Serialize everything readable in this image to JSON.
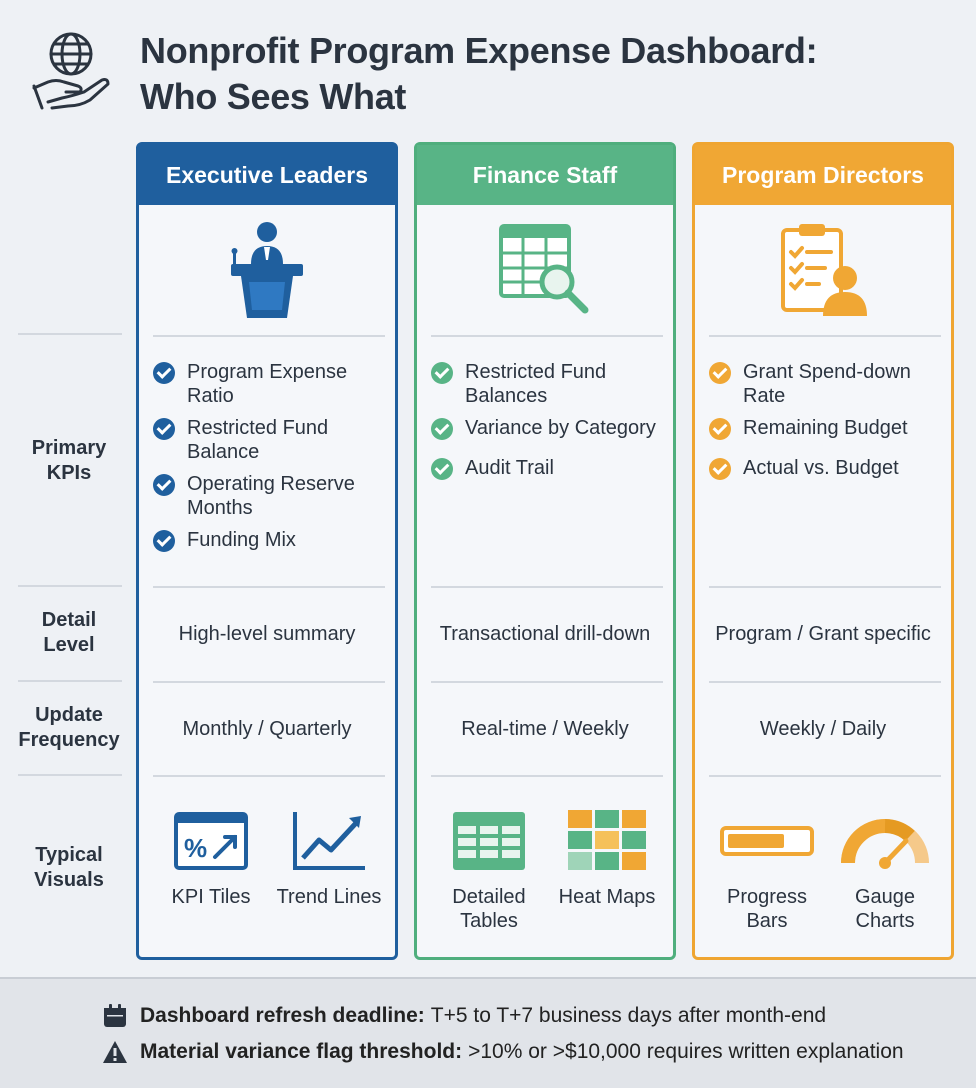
{
  "title": {
    "line1": "Nonprofit Program Expense Dashboard:",
    "line2": "Who Sees What"
  },
  "row_labels": {
    "primary_kpis": "Primary KPIs",
    "detail_level": "Detail Level",
    "update_frequency": "Update Frequency",
    "typical_visuals": "Typical Visuals"
  },
  "columns": {
    "executive": {
      "header": "Executive Leaders",
      "icon": "presenter-podium-icon",
      "color": "#1f5f9e",
      "kpis": [
        "Program Expense Ratio",
        "Restricted Fund Balance",
        "Operating Reserve Months",
        "Funding Mix"
      ],
      "detail_level": "High-level summary",
      "update_frequency": "Monthly / Quarterly",
      "visuals": [
        "KPI Tiles",
        "Trend Lines"
      ]
    },
    "finance": {
      "header": "Finance Staff",
      "icon": "spreadsheet-magnifier-icon",
      "color": "#58b486",
      "kpis": [
        "Restricted Fund Balances",
        "Variance by Category",
        "Audit Trail"
      ],
      "detail_level": "Transactional drill-down",
      "update_frequency": "Real-time / Weekly",
      "visuals": [
        "Detailed Tables",
        "Heat Maps"
      ]
    },
    "program": {
      "header": "Program Directors",
      "icon": "clipboard-person-icon",
      "color": "#f0a734",
      "kpis": [
        "Grant Spend-down Rate",
        "Remaining Budget",
        "Actual vs. Budget"
      ],
      "detail_level": "Program / Grant specific",
      "update_frequency": "Weekly / Daily",
      "visuals": [
        "Progress Bars",
        "Gauge Charts"
      ]
    }
  },
  "footer": {
    "deadline_label": "Dashboard refresh deadline:",
    "deadline_text": "T+5 to T+7 business days after month-end",
    "threshold_label": "Material variance flag threshold:",
    "threshold_text": ">10% or >$10,000 requires written explanation"
  }
}
